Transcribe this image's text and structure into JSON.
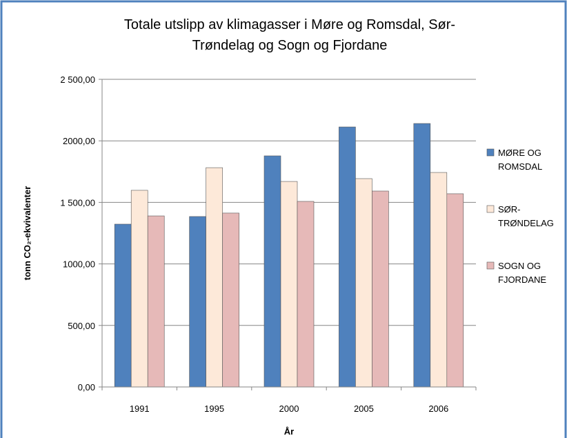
{
  "chart_data": {
    "type": "bar",
    "title": "Totale utslipp av klimagasser i Møre og Romsdal, Sør-Trøndelag og Sogn og Fjordane",
    "y_label": "tonn CO₂-ekvivalenter",
    "x_label": "År",
    "categories": [
      "1991",
      "1995",
      "2000",
      "2005",
      "2006"
    ],
    "series": [
      {
        "name": "MØRE OG ROMSDAL",
        "color": "#4f81bd",
        "values": [
          1323,
          1385,
          1878,
          2113,
          2141
        ]
      },
      {
        "name": "SØR-TRØNDELAG",
        "color": "#fde9d9",
        "values": [
          1598,
          1782,
          1670,
          1693,
          1743
        ]
      },
      {
        "name": "SOGN OG FJORDANE",
        "color": "#e6b9b8",
        "values": [
          1390,
          1413,
          1508,
          1592,
          1570
        ]
      }
    ],
    "ylim": [
      0,
      2500
    ],
    "yticks": [
      {
        "value": 0,
        "label": "0,00"
      },
      {
        "value": 500,
        "label": "500,00"
      },
      {
        "value": 1000,
        "label": "1000,00"
      },
      {
        "value": 1500,
        "label": "1 500,00"
      },
      {
        "value": 2000,
        "label": "2000,00"
      },
      {
        "value": 2500,
        "label": "2 500,00"
      }
    ],
    "grid": true,
    "legend": "right"
  }
}
